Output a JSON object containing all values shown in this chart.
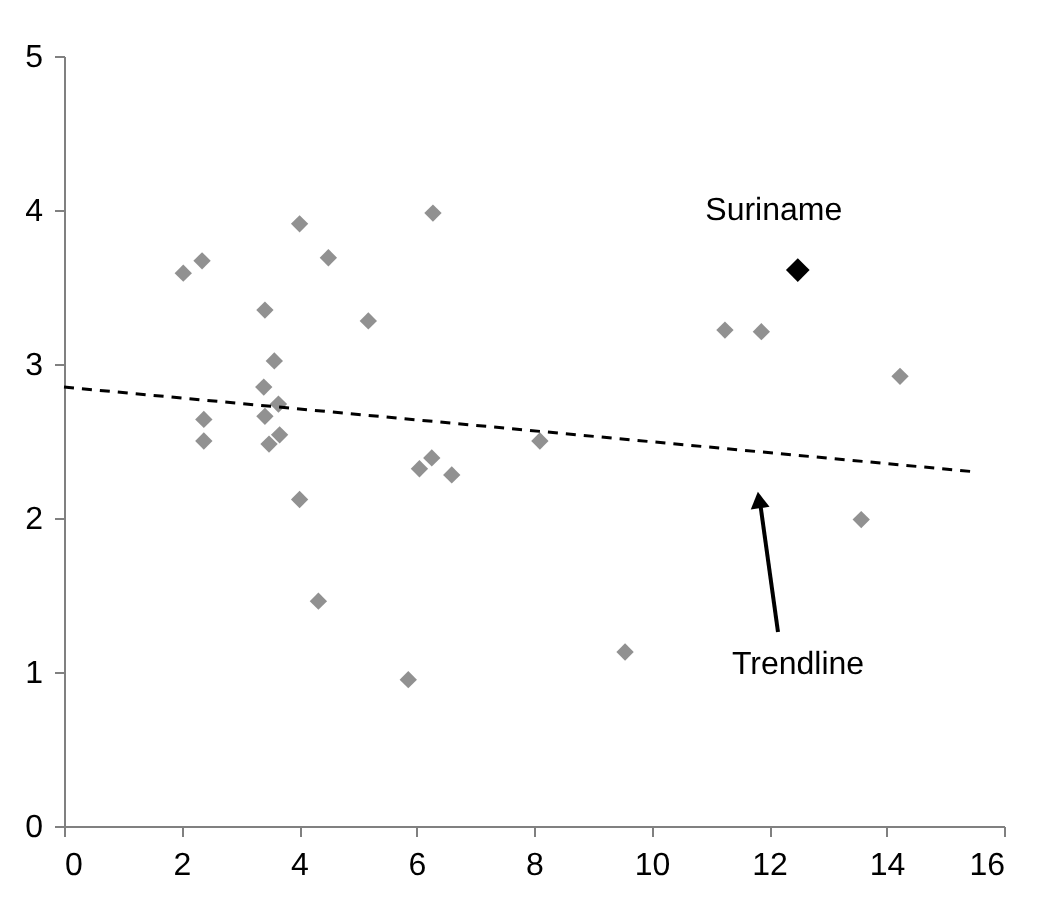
{
  "chart_data": {
    "type": "scatter",
    "marker": "diamond",
    "xlim": [
      0,
      16
    ],
    "xticks": [
      0,
      2,
      4,
      6,
      8,
      10,
      12,
      14,
      16
    ],
    "ylim": [
      0,
      5
    ],
    "yticks": [
      0,
      1,
      2,
      3,
      4,
      5
    ],
    "series": [
      {
        "color": "#919191",
        "x": [
          2.03,
          2.35,
          4.01,
          4.5,
          6.28,
          3.42,
          5.18,
          3.58,
          3.4,
          3.65,
          3.42,
          2.38,
          2.38,
          3.67,
          3.49,
          6.05,
          6.26,
          6.6,
          4.01,
          4.33,
          8.1,
          5.86,
          9.55,
          13.57,
          11.25,
          11.87,
          14.23
        ],
        "values": [
          3.59,
          3.67,
          3.91,
          3.69,
          3.98,
          3.35,
          3.28,
          3.02,
          2.85,
          2.74,
          2.66,
          2.64,
          2.5,
          2.54,
          2.48,
          2.32,
          2.39,
          2.28,
          2.12,
          1.46,
          2.5,
          0.95,
          1.13,
          1.99,
          3.22,
          3.21,
          2.92
        ]
      },
      {
        "name": "Suriname",
        "color": "#000000",
        "x": [
          12.49
        ],
        "values": [
          3.61
        ]
      },
      {
        "type": "line",
        "color": "#000000",
        "line_style": "dashed",
        "marker": "none",
        "x": [
          0,
          15.5
        ],
        "values": [
          2.85,
          2.3
        ]
      }
    ],
    "annotations": [
      "Trendline"
    ]
  }
}
